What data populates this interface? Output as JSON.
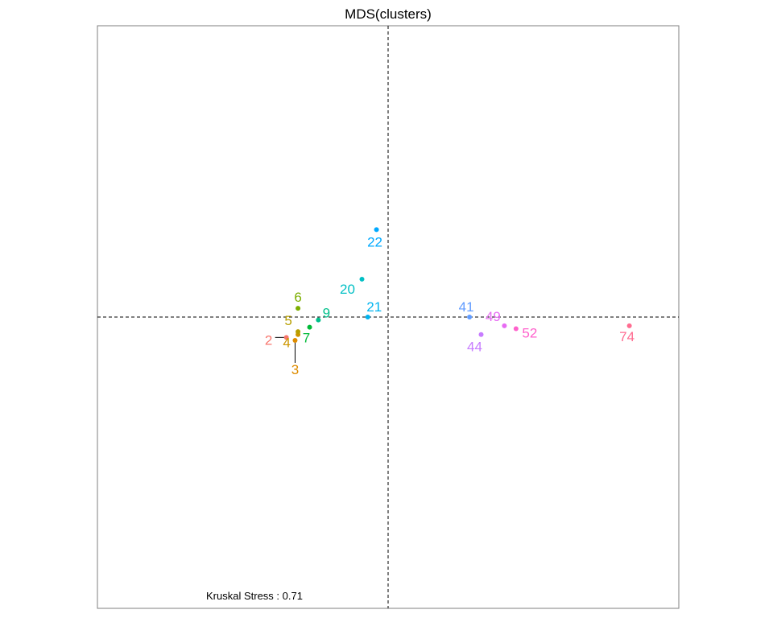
{
  "chart_data": {
    "type": "scatter",
    "title": "MDS(clusters)",
    "xlabel": "",
    "ylabel": "",
    "xlim": [
      -1.0,
      1.0
    ],
    "ylim": [
      -1.0,
      1.0
    ],
    "reference_lines": {
      "x": 0,
      "y": 0,
      "style": "dashed"
    },
    "grid": false,
    "legend": "none",
    "annotation": "Kruskal Stress : 0.71",
    "points": [
      {
        "label": "2",
        "x": -0.35,
        "y": -0.07,
        "color": "#F8766D"
      },
      {
        "label": "3",
        "x": -0.32,
        "y": -0.08,
        "color": "#DE8C00"
      },
      {
        "label": "4",
        "x": -0.31,
        "y": -0.06,
        "color": "#CD9600"
      },
      {
        "label": "5",
        "x": -0.31,
        "y": -0.05,
        "color": "#B79F00"
      },
      {
        "label": "6",
        "x": -0.31,
        "y": 0.03,
        "color": "#7CAE00"
      },
      {
        "label": "7",
        "x": -0.27,
        "y": -0.035,
        "color": "#00BA38"
      },
      {
        "label": "9",
        "x": -0.24,
        "y": -0.01,
        "color": "#00C08B"
      },
      {
        "label": "20",
        "x": -0.09,
        "y": 0.13,
        "color": "#00BFC4"
      },
      {
        "label": "21",
        "x": -0.07,
        "y": 0.0,
        "color": "#00B4F0"
      },
      {
        "label": "22",
        "x": -0.04,
        "y": 0.3,
        "color": "#00A9FF"
      },
      {
        "label": "41",
        "x": 0.28,
        "y": 0.0,
        "color": "#619CFF"
      },
      {
        "label": "44",
        "x": 0.32,
        "y": -0.06,
        "color": "#C77CFF"
      },
      {
        "label": "49",
        "x": 0.4,
        "y": -0.03,
        "color": "#E76BF3"
      },
      {
        "label": "52",
        "x": 0.44,
        "y": -0.04,
        "color": "#FF61CC"
      },
      {
        "label": "74",
        "x": 0.83,
        "y": -0.03,
        "color": "#FF6C91"
      }
    ]
  }
}
